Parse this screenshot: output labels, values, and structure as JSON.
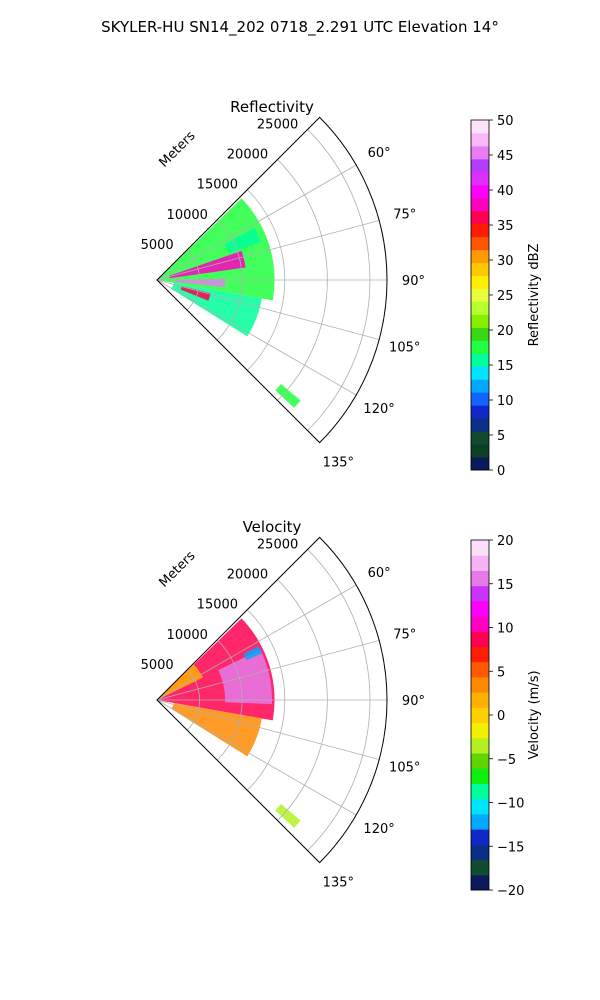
{
  "suptitle": "SKYLER-HU  SN14_202  0718_2.291 UTC Elevation 14°",
  "chart_data": [
    {
      "type": "polar-sector",
      "title": "Reflectivity",
      "range_axis_label": "Meters",
      "rlim": [
        0,
        27000
      ],
      "range_rings": [
        5000,
        10000,
        15000,
        20000,
        25000
      ],
      "azimuth_range_deg": [
        45,
        135
      ],
      "azimuth_ticks_deg": [
        60,
        75,
        90,
        105,
        120,
        135
      ],
      "azimuth_tick_labels": [
        "60°",
        "75°",
        "90°",
        "105°",
        "120°",
        "135°"
      ],
      "grid": true,
      "colorbar": {
        "label": "Reflectivity dBZ",
        "vmin": 0,
        "vmax": 50,
        "ticks": [
          0,
          5,
          10,
          15,
          20,
          25,
          30,
          35,
          40,
          45,
          50
        ]
      },
      "echo_regions": [
        {
          "az": [
            46,
            100
          ],
          "range_m": [
            0,
            13800
          ],
          "dominant_value": 17
        },
        {
          "az": [
            62,
            70
          ],
          "range_m": [
            9000,
            13000
          ],
          "dominant_value": 15
        },
        {
          "az": [
            100,
            122
          ],
          "range_m": [
            2000,
            12500
          ],
          "dominant_value": 16
        },
        {
          "az": [
            71,
            82
          ],
          "range_m": [
            1500,
            10500
          ],
          "dominant_value": 38
        },
        {
          "az": [
            89,
            96
          ],
          "range_m": [
            2000,
            8000
          ],
          "dominant_value": 45
        },
        {
          "az": [
            104,
            112
          ],
          "range_m": [
            3000,
            6500
          ],
          "dominant_value": 36
        },
        {
          "az": [
            130,
            133
          ],
          "range_m": [
            19000,
            22000
          ],
          "dominant_value": 18
        }
      ]
    },
    {
      "type": "polar-sector",
      "title": "Velocity",
      "range_axis_label": "Meters",
      "rlim": [
        0,
        27000
      ],
      "range_rings": [
        5000,
        10000,
        15000,
        20000,
        25000
      ],
      "azimuth_range_deg": [
        45,
        135
      ],
      "azimuth_ticks_deg": [
        60,
        75,
        90,
        105,
        120,
        135
      ],
      "azimuth_tick_labels": [
        "60°",
        "75°",
        "90°",
        "105°",
        "120°",
        "135°"
      ],
      "grid": true,
      "colorbar": {
        "label": "Velocity (m/s)",
        "vmin": -20,
        "vmax": 20,
        "ticks": [
          -20,
          -15,
          -10,
          -5,
          0,
          5,
          10,
          15,
          20
        ]
      },
      "echo_regions": [
        {
          "az": [
            46,
            100
          ],
          "range_m": [
            0,
            13800
          ],
          "dominant_value": 9
        },
        {
          "az": [
            46,
            64
          ],
          "range_m": [
            0,
            6000
          ],
          "dominant_value": 1
        },
        {
          "az": [
            64,
            92
          ],
          "range_m": [
            8000,
            13500
          ],
          "dominant_value": 15
        },
        {
          "az": [
            62,
            66
          ],
          "range_m": [
            11500,
            13500
          ],
          "dominant_value": -12
        },
        {
          "az": [
            100,
            122
          ],
          "range_m": [
            2000,
            12500
          ],
          "dominant_value": 4
        },
        {
          "az": [
            130,
            133
          ],
          "range_m": [
            19000,
            22000
          ],
          "dominant_value": -4
        }
      ]
    }
  ]
}
